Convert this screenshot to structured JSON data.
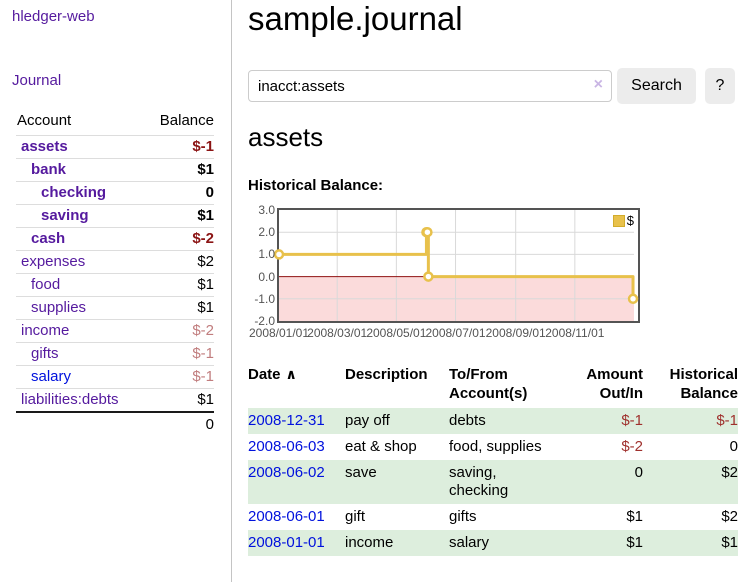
{
  "sidebar": {
    "title": "hledger-web",
    "nav_journal": "Journal",
    "accounts": {
      "header_account": "Account",
      "header_balance": "Balance",
      "rows": [
        {
          "name": "assets",
          "level": 0,
          "bold": true,
          "balance": "$-1"
        },
        {
          "name": "bank",
          "level": 1,
          "bold": true,
          "balance": "$1"
        },
        {
          "name": "checking",
          "level": 2,
          "bold": true,
          "balance": "0"
        },
        {
          "name": "saving",
          "level": 2,
          "bold": true,
          "balance": "$1"
        },
        {
          "name": "cash",
          "level": 1,
          "bold": true,
          "balance": "$-2"
        },
        {
          "name": "expenses",
          "level": 0,
          "bold": false,
          "balance": "$2"
        },
        {
          "name": "food",
          "level": 1,
          "bold": false,
          "balance": "$1"
        },
        {
          "name": "supplies",
          "level": 1,
          "bold": false,
          "balance": "$1"
        },
        {
          "name": "income",
          "level": 0,
          "bold": false,
          "balance": "$-2"
        },
        {
          "name": "gifts",
          "level": 1,
          "bold": false,
          "balance": "$-1"
        },
        {
          "name": "salary",
          "level": 1,
          "bold": false,
          "balance": "$-1",
          "link_color": "blue"
        },
        {
          "name": "liabilities:debts",
          "level": 0,
          "bold": false,
          "balance": "$1"
        }
      ],
      "total": "0"
    }
  },
  "main": {
    "title": "sample.journal",
    "search": {
      "value": "inacct:assets",
      "clear_icon": "×",
      "button_label": "Search",
      "help_label": "?"
    },
    "account_heading": "assets",
    "chart_label": "Historical Balance:",
    "chart_data": {
      "type": "line",
      "step": true,
      "title": "Historical Balance:",
      "series_label": "$",
      "points": [
        [
          "2008-01-01",
          1
        ],
        [
          "2008-06-01",
          2
        ],
        [
          "2008-06-02",
          2
        ],
        [
          "2008-06-03",
          0
        ],
        [
          "2008-12-31",
          -1
        ]
      ],
      "xlim": [
        "2008-01-01",
        "2009-01-01"
      ],
      "ylim": [
        -2,
        3
      ],
      "x_ticks": [
        {
          "date": "2008-01-01",
          "label": "2008/01/01"
        },
        {
          "date": "2008-03-01",
          "label": "2008/03/01"
        },
        {
          "date": "2008-05-01",
          "label": "2008/05/01"
        },
        {
          "date": "2008-07-01",
          "label": "2008/07/01"
        },
        {
          "date": "2008-09-01",
          "label": "2008/09/01"
        },
        {
          "date": "2008-11-01",
          "label": "2008/11/01"
        }
      ],
      "y_ticks": [
        {
          "value": 3,
          "label": "3.0"
        },
        {
          "value": 2,
          "label": "2.0"
        },
        {
          "value": 1,
          "label": "1.0"
        },
        {
          "value": 0,
          "label": "0.0"
        },
        {
          "value": -1,
          "label": "-1.0"
        },
        {
          "value": -2,
          "label": "-2.0"
        }
      ],
      "legend_position": "top-right",
      "grid": true,
      "colors": {
        "line": "#e8c14b",
        "marker_fill": "#ffffff",
        "negative_region": "#fbdbdb",
        "zero_line": "#8f1010",
        "grid": "#d9d9d9",
        "border": "#545454",
        "tick_text": "#545454"
      }
    },
    "register": {
      "headers": [
        {
          "label": "Date",
          "align": "left",
          "sort_icon": "∧"
        },
        {
          "label": "Description",
          "align": "left"
        },
        {
          "label": "To/From\nAccount(s)",
          "align": "left"
        },
        {
          "label": "Amount\nOut/In",
          "align": "right"
        },
        {
          "label": "Historical\nBalance",
          "align": "right"
        }
      ],
      "rows": [
        {
          "date": "2008-12-31",
          "description": "pay off",
          "accounts": "debts",
          "amount": "$-1",
          "balance": "$-1",
          "shaded": true
        },
        {
          "date": "2008-06-03",
          "description": "eat & shop",
          "accounts": "food, supplies",
          "amount": "$-2",
          "balance": "0",
          "shaded": false
        },
        {
          "date": "2008-06-02",
          "description": "save",
          "accounts": "saving,\nchecking",
          "amount": "0",
          "balance": "$2",
          "shaded": true
        },
        {
          "date": "2008-06-01",
          "description": "gift",
          "accounts": "gifts",
          "amount": "$1",
          "balance": "$2",
          "shaded": false
        },
        {
          "date": "2008-01-01",
          "description": "income",
          "accounts": "salary",
          "amount": "$1",
          "balance": "$1",
          "shaded": true
        }
      ]
    }
  },
  "colors": {
    "link_purple": "#551a9e",
    "link_blue": "#0011dd",
    "negative_bold": "#8b1414",
    "negative": "#9f302d",
    "negative_muted": "#c17d7e",
    "row_shade_green": "#ddeedd",
    "button_bg": "#ececec",
    "input_border": "#cccccc",
    "clear_icon": "#c9b5e4",
    "sidebar_divider": "#c4c4c4",
    "table_rule": "#dddddd"
  }
}
